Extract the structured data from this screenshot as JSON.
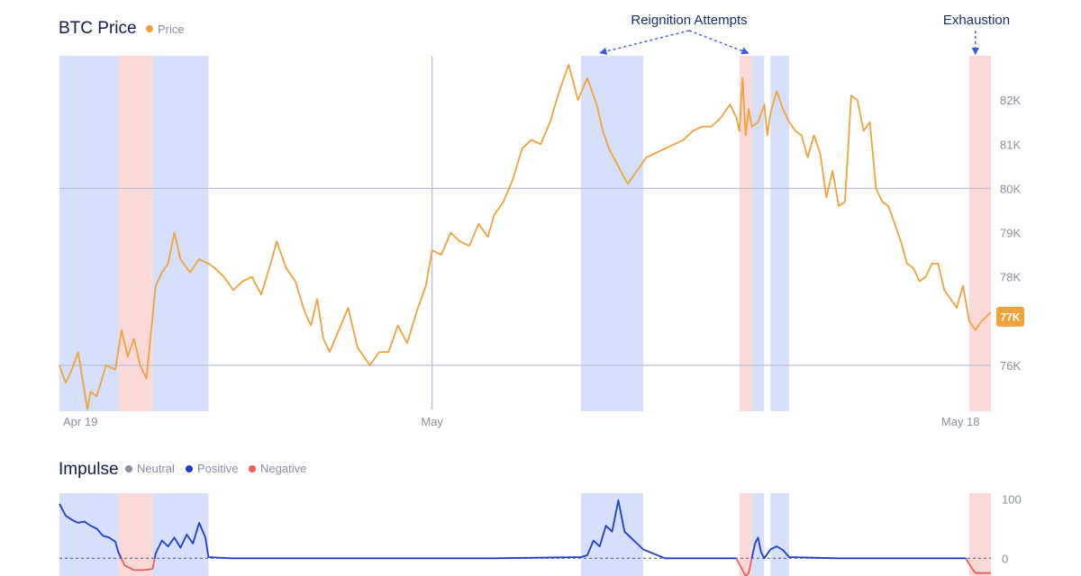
{
  "chart_data": [
    {
      "type": "line",
      "title": "BTC Price",
      "legend": [
        {
          "name": "Price",
          "color": "#f0a23c"
        }
      ],
      "colors": {
        "price": "#f0a23c",
        "positive_band": "#d6e0fb",
        "negative_band": "#fcd9d9",
        "badge": "#f0a23c",
        "annotation": "#3b5bdb"
      },
      "x_ticks": [
        {
          "label": "Apr 19",
          "day": 0
        },
        {
          "label": "May",
          "day": 12
        },
        {
          "label": "May 18",
          "day": 29
        }
      ],
      "x_range_days": [
        0,
        30
      ],
      "y_ticks": [
        {
          "label": "82K",
          "value": 82
        },
        {
          "label": "81K",
          "value": 81
        },
        {
          "label": "80K",
          "value": 80
        },
        {
          "label": "79K",
          "value": 79
        },
        {
          "label": "78K",
          "value": 78
        },
        {
          "label": "76K",
          "value": 76
        }
      ],
      "reference_lines": [
        80,
        76
      ],
      "ylim": [
        75,
        83
      ],
      "current_value_badge": {
        "label": "77K",
        "value": 77.1
      },
      "bands": [
        {
          "type": "positive",
          "start": 0,
          "end": 1.9
        },
        {
          "type": "negative",
          "start": 1.9,
          "end": 3.0
        },
        {
          "type": "positive",
          "start": 3.0,
          "end": 4.8
        },
        {
          "type": "positive",
          "start": 16.8,
          "end": 18.8
        },
        {
          "type": "negative",
          "start": 21.9,
          "end": 22.3
        },
        {
          "type": "positive",
          "start": 22.3,
          "end": 22.7
        },
        {
          "type": "positive",
          "start": 22.9,
          "end": 23.5
        },
        {
          "type": "negative",
          "start": 29.3,
          "end": 30.0
        }
      ],
      "annotations": [
        {
          "text": "Reignition Attempts",
          "targets": [
            17.5,
            22.1
          ]
        },
        {
          "text": "Exhaustion",
          "targets": [
            29.5
          ]
        }
      ],
      "series": [
        {
          "name": "Price",
          "x": [
            0,
            0.2,
            0.4,
            0.6,
            0.9,
            1.0,
            1.2,
            1.5,
            1.8,
            2.0,
            2.2,
            2.4,
            2.6,
            2.8,
            2.9,
            3.1,
            3.3,
            3.5,
            3.7,
            3.9,
            4.2,
            4.5,
            4.8,
            5.0,
            5.3,
            5.6,
            5.9,
            6.2,
            6.5,
            6.8,
            7.0,
            7.3,
            7.6,
            7.9,
            8.1,
            8.3,
            8.5,
            8.7,
            9.0,
            9.3,
            9.6,
            10.0,
            10.3,
            10.6,
            10.9,
            11.2,
            11.5,
            11.8,
            12.0,
            12.3,
            12.6,
            12.9,
            13.2,
            13.5,
            13.8,
            14.0,
            14.3,
            14.6,
            14.9,
            15.2,
            15.5,
            15.8,
            16.1,
            16.4,
            16.7,
            17.0,
            17.3,
            17.5,
            17.7,
            18.0,
            18.3,
            18.6,
            18.9,
            19.2,
            19.5,
            19.8,
            20.1,
            20.4,
            20.7,
            21.0,
            21.3,
            21.6,
            21.8,
            21.9,
            22.0,
            22.1,
            22.2,
            22.3,
            22.5,
            22.7,
            22.8,
            22.9,
            23.1,
            23.3,
            23.5,
            23.7,
            23.9,
            24.1,
            24.3,
            24.5,
            24.7,
            24.9,
            25.1,
            25.3,
            25.5,
            25.7,
            25.9,
            26.1,
            26.3,
            26.5,
            26.7,
            26.9,
            27.1,
            27.3,
            27.5,
            27.7,
            27.9,
            28.1,
            28.3,
            28.5,
            28.7,
            28.9,
            29.1,
            29.3,
            29.5,
            29.7,
            30.0
          ],
          "y": [
            76.0,
            75.6,
            75.9,
            76.3,
            75.0,
            75.4,
            75.3,
            76.0,
            75.9,
            76.8,
            76.2,
            76.6,
            76.0,
            75.7,
            76.4,
            77.8,
            78.1,
            78.3,
            79.0,
            78.4,
            78.1,
            78.4,
            78.3,
            78.2,
            78.0,
            77.7,
            77.9,
            78.0,
            77.6,
            78.3,
            78.8,
            78.2,
            77.9,
            77.2,
            76.9,
            77.5,
            76.6,
            76.3,
            76.8,
            77.3,
            76.4,
            76.0,
            76.3,
            76.3,
            76.9,
            76.5,
            77.2,
            77.8,
            78.6,
            78.5,
            79.0,
            78.8,
            78.7,
            79.2,
            78.9,
            79.4,
            79.7,
            80.2,
            80.9,
            81.1,
            81.0,
            81.5,
            82.2,
            82.8,
            82.0,
            82.5,
            81.9,
            81.3,
            80.9,
            80.5,
            80.1,
            80.4,
            80.7,
            80.8,
            80.9,
            81.0,
            81.1,
            81.3,
            81.4,
            81.4,
            81.6,
            81.9,
            81.6,
            81.3,
            82.5,
            81.2,
            81.8,
            81.4,
            81.5,
            81.9,
            81.2,
            81.7,
            82.2,
            81.8,
            81.5,
            81.3,
            81.2,
            80.7,
            81.2,
            80.8,
            79.8,
            80.4,
            79.6,
            79.7,
            82.1,
            82.0,
            81.3,
            81.5,
            80.0,
            79.7,
            79.6,
            79.2,
            78.8,
            78.3,
            78.2,
            77.9,
            78.0,
            78.3,
            78.3,
            77.7,
            77.5,
            77.3,
            77.8,
            77.0,
            76.8,
            77.0,
            77.2
          ]
        }
      ]
    },
    {
      "type": "line",
      "title": "Impulse",
      "legend": [
        {
          "name": "Neutral",
          "color": "#8a8fa0"
        },
        {
          "name": "Positive",
          "color": "#1f3bcc"
        },
        {
          "name": "Negative",
          "color": "#f05a5a"
        }
      ],
      "y_ticks": [
        {
          "label": "100",
          "value": 100
        },
        {
          "label": "0",
          "value": 0
        }
      ],
      "ylim": [
        -30,
        110
      ],
      "series": [
        {
          "name": "Impulse",
          "x": [
            0,
            0.2,
            0.4,
            0.6,
            0.8,
            1.0,
            1.2,
            1.4,
            1.6,
            1.8,
            1.9,
            2.1,
            2.4,
            2.7,
            3.0,
            3.1,
            3.3,
            3.5,
            3.7,
            3.9,
            4.1,
            4.3,
            4.5,
            4.7,
            4.8,
            5.5,
            8.0,
            10.0,
            12.0,
            14.0,
            16.8,
            17.0,
            17.2,
            17.4,
            17.6,
            17.8,
            18.0,
            18.2,
            18.4,
            18.6,
            18.8,
            19.5,
            21.0,
            21.8,
            21.9,
            22.0,
            22.1,
            22.2,
            22.3,
            22.4,
            22.5,
            22.6,
            22.7,
            22.9,
            23.1,
            23.3,
            23.5,
            25.0,
            27.0,
            29.0,
            29.2,
            29.3,
            29.5,
            30.0
          ],
          "y": [
            92,
            72,
            65,
            60,
            62,
            55,
            50,
            38,
            35,
            28,
            10,
            -12,
            -20,
            -20,
            -18,
            8,
            30,
            20,
            35,
            18,
            40,
            25,
            60,
            35,
            2,
            0,
            0,
            0,
            0,
            0,
            2,
            5,
            30,
            20,
            55,
            45,
            98,
            45,
            35,
            25,
            15,
            0,
            0,
            0,
            -10,
            -20,
            -30,
            -25,
            0,
            25,
            35,
            10,
            0,
            15,
            20,
            14,
            2,
            0,
            0,
            0,
            0,
            -10,
            -25,
            -25
          ]
        }
      ]
    }
  ]
}
